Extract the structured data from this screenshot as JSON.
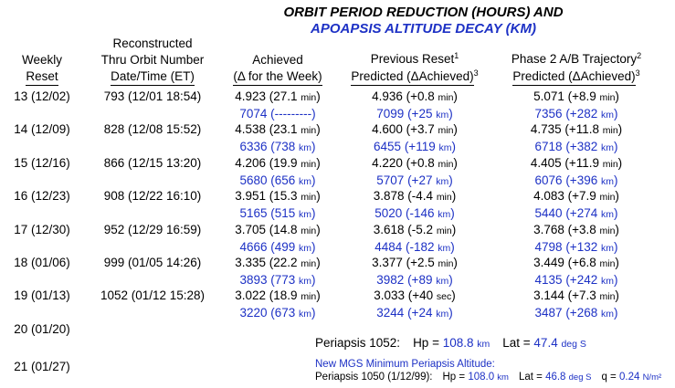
{
  "title": {
    "line1": "ORBIT PERIOD REDUCTION (HOURS) AND",
    "line2": "APOAPSIS ALTITUDE DECAY (KM)"
  },
  "colors": {
    "blue": "#1d31c5",
    "black": "#000000"
  },
  "header": {
    "col1": {
      "line1": "Weekly",
      "line2": "Reset"
    },
    "col2": {
      "line0": "Reconstructed",
      "line1": "Thru Orbit Number",
      "line2": "Date/Time (ET)"
    },
    "col3": {
      "line1": "Achieved",
      "line2": "(Δ for the Week)"
    },
    "col4": {
      "line1": "Previous Reset",
      "line1_sup": "1",
      "line2": "Predicted (ΔAchieved)",
      "line2_sup": "3"
    },
    "col5": {
      "line1": "Phase 2 A/B Trajectory",
      "line1_sup": "2",
      "line2": "Predicted (ΔAchieved)",
      "line2_sup": "3"
    }
  },
  "rows": [
    {
      "week": "13 (12/02)",
      "orbit": "793 (12/01 18:54)",
      "ach_hr": "4.923 (27.1 min)",
      "ach_km": "7074 (---------)",
      "prev_hr": "4.936 (+0.8 min)",
      "prev_km": "7099 (+25 km)",
      "ph2_hr": "5.071 (+8.9 min)",
      "ph2_km": "7356 (+282 km)"
    },
    {
      "week": "14 (12/09)",
      "orbit": "828 (12/08 15:52)",
      "ach_hr": "4.538 (23.1 min)",
      "ach_km": "6336 (738 km)",
      "prev_hr": "4.600 (+3.7 min)",
      "prev_km": "6455 (+119 km)",
      "ph2_hr": "4.735 (+11.8 min)",
      "ph2_km": "6718 (+382 km)"
    },
    {
      "week": "15 (12/16)",
      "orbit": "866 (12/15 13:20)",
      "ach_hr": "4.206 (19.9 min)",
      "ach_km": "5680 (656 km)",
      "prev_hr": "4.220 (+0.8 min)",
      "prev_km": "5707 (+27 km)",
      "ph2_hr": "4.405 (+11.9 min)",
      "ph2_km": "6076 (+396 km)"
    },
    {
      "week": "16 (12/23)",
      "orbit": "908 (12/22 16:10)",
      "ach_hr": "3.951 (15.3 min)",
      "ach_km": "5165 (515 km)",
      "prev_hr": "3.878 (-4.4 min)",
      "prev_km": "5020 (-146 km)",
      "ph2_hr": "4.083 (+7.9 min)",
      "ph2_km": "5440 (+274 km)"
    },
    {
      "week": "17 (12/30)",
      "orbit": "952 (12/29 16:59)",
      "ach_hr": "3.705 (14.8 min)",
      "ach_km": "4666 (499 km)",
      "prev_hr": "3.618 (-5.2 min)",
      "prev_km": "4484 (-182 km)",
      "ph2_hr": "3.768 (+3.8 min)",
      "ph2_km": "4798 (+132 km)"
    },
    {
      "week": "18 (01/06)",
      "orbit": "999 (01/05 14:26)",
      "ach_hr": "3.335 (22.2 min)",
      "ach_km": "3893 (773 km)",
      "prev_hr": "3.377 (+2.5 min)",
      "prev_km": "3982 (+89 km)",
      "ph2_hr": "3.449 (+6.8 min)",
      "ph2_km": "4135 (+242 km)"
    },
    {
      "week": "19 (01/13)",
      "orbit": "1052 (01/12 15:28)",
      "ach_hr": "3.022 (18.9 min)",
      "ach_km": "3220 (673 km)",
      "prev_hr": "3.033 (+40 sec)",
      "prev_km": "3244 (+24 km)",
      "ph2_hr": "3.144 (+7.3 min)",
      "ph2_km": "3487 (+268 km)"
    }
  ],
  "week20": {
    "week": "20 (01/20)",
    "note": {
      "label": "Periapsis 1052:",
      "hp_label": "Hp = ",
      "hp_value": "108.8 km",
      "lat_label": "Lat = ",
      "lat_value": "47.4 deg S"
    }
  },
  "week21": {
    "week": "21 (01/27)",
    "note_title": "New MGS Minimum Periapsis Altitude:",
    "note": {
      "label": "Periapsis 1050 (1/12/99):",
      "hp_label": "Hp = ",
      "hp_value": "108.0 km",
      "lat_label": "Lat = ",
      "lat_value": "46.8 deg S",
      "q_label": "q = ",
      "q_value": "0.24 N/m²"
    }
  }
}
